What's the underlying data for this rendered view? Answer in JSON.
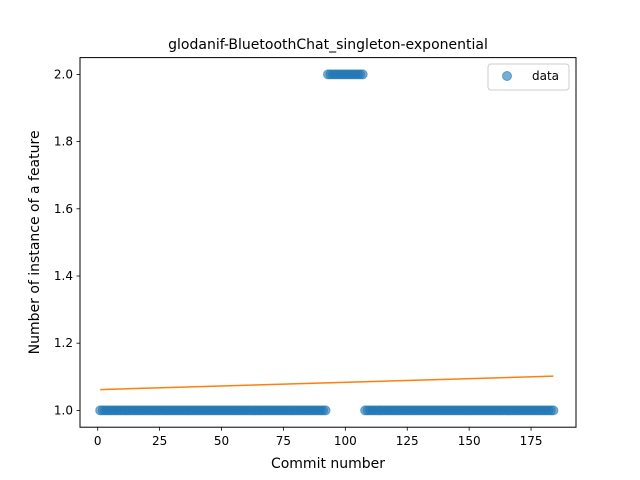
{
  "chart_data": {
    "type": "scatter",
    "title": "glodanif-BluetoothChat_singleton-exponential",
    "xlabel": "Commit number",
    "ylabel": "Number of instance of a feature",
    "xlim": [
      -7.15,
      193.15
    ],
    "ylim": [
      0.95,
      2.05
    ],
    "xticks": [
      0,
      25,
      50,
      75,
      100,
      125,
      150,
      175
    ],
    "yticks": [
      1.0,
      1.2,
      1.4,
      1.6,
      1.8,
      2.0
    ],
    "ytick_labels": [
      "1.0",
      "1.2",
      "1.4",
      "1.6",
      "1.8",
      "2.0"
    ],
    "grid": false,
    "legend_position": "top-right",
    "colors": {
      "scatter": "#1f77b4",
      "fit": "#ff7f0e"
    },
    "series": [
      {
        "name": "data",
        "kind": "scatter",
        "segments": [
          {
            "x_start": 1,
            "x_end": 92,
            "y": 1
          },
          {
            "x_start": 93,
            "x_end": 107,
            "y": 2
          },
          {
            "x_start": 108,
            "x_end": 184,
            "y": 1
          }
        ]
      },
      {
        "kind": "line",
        "x": [
          1,
          184
        ],
        "y": [
          1.062,
          1.102
        ]
      }
    ]
  }
}
